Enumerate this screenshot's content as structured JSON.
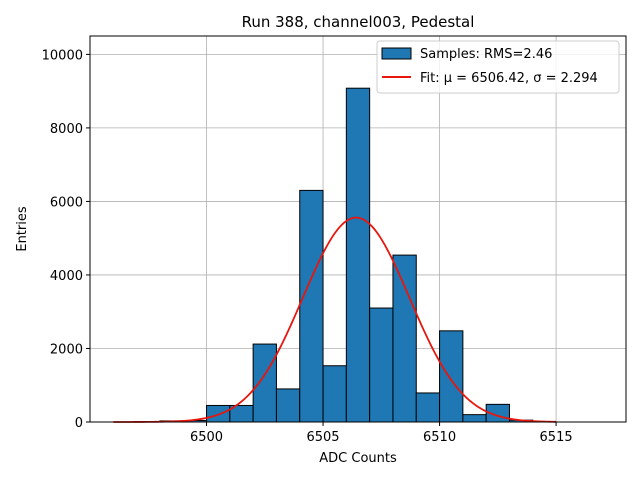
{
  "chart_data": {
    "type": "bar",
    "title": "Run 388, channel003, Pedestal",
    "xlabel": "ADC Counts",
    "ylabel": "Entries",
    "xlim": [
      6495.0,
      6518.0
    ],
    "ylim": [
      0,
      10500
    ],
    "xticks": [
      6500,
      6505,
      6510,
      6515
    ],
    "yticks": [
      0,
      2000,
      4000,
      6000,
      8000,
      10000
    ],
    "grid": true,
    "legend_position": "top-right",
    "histogram": {
      "name": "Samples: RMS=2.46",
      "color": "#1f77b4",
      "bin_width": 1,
      "bins": [
        {
          "left": 6497,
          "count": 10
        },
        {
          "left": 6498,
          "count": 30
        },
        {
          "left": 6499,
          "count": 40
        },
        {
          "left": 6500,
          "count": 450
        },
        {
          "left": 6501,
          "count": 450
        },
        {
          "left": 6502,
          "count": 2120
        },
        {
          "left": 6503,
          "count": 900
        },
        {
          "left": 6504,
          "count": 6300
        },
        {
          "left": 6505,
          "count": 1530
        },
        {
          "left": 6506,
          "count": 9080
        },
        {
          "left": 6507,
          "count": 3100
        },
        {
          "left": 6508,
          "count": 4540
        },
        {
          "left": 6509,
          "count": 790
        },
        {
          "left": 6510,
          "count": 2480
        },
        {
          "left": 6511,
          "count": 200
        },
        {
          "left": 6512,
          "count": 480
        },
        {
          "left": 6513,
          "count": 50
        }
      ]
    },
    "fit": {
      "name": "Fit: μ = 6506.42, σ = 2.294",
      "color": "#e8160c",
      "mu": 6506.42,
      "sigma": 2.294,
      "amplitude": 5560,
      "x_range": [
        6496,
        6515
      ]
    }
  }
}
